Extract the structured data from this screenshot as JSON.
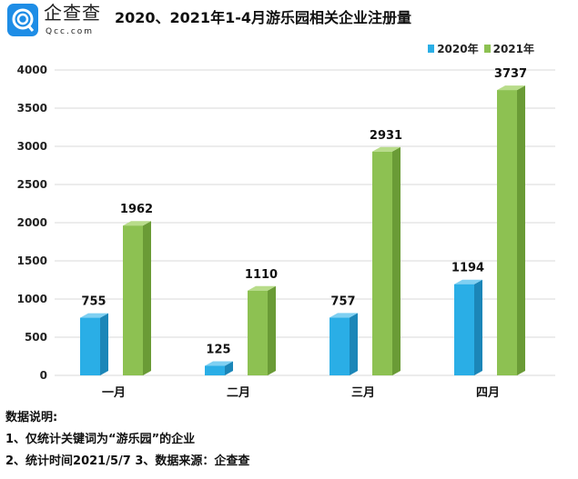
{
  "logo": {
    "name": "企查查",
    "domain": "Qcc.com"
  },
  "notes": {
    "heading": "数据说明:",
    "line1": "1、仅统计关键词为“游乐园”的企业",
    "line2": "2、统计时间2021/5/7   3、数据来源：企查查"
  },
  "chart_data": {
    "type": "bar",
    "title": "2020、2021年1-4月游乐园相关企业注册量",
    "categories": [
      "一月",
      "二月",
      "三月",
      "四月"
    ],
    "series": [
      {
        "name": "2020年",
        "values": [
          755,
          125,
          757,
          1194
        ],
        "color": "#2aaee6"
      },
      {
        "name": "2021年",
        "values": [
          1962,
          1110,
          2931,
          3737
        ],
        "color": "#8dc152"
      }
    ],
    "yticks": [
      0,
      500,
      1000,
      1500,
      2000,
      2500,
      3000,
      3500,
      4000
    ],
    "ylim": [
      0,
      4000
    ],
    "grid": true,
    "legend": "top-right",
    "xlabel": "",
    "ylabel": ""
  }
}
